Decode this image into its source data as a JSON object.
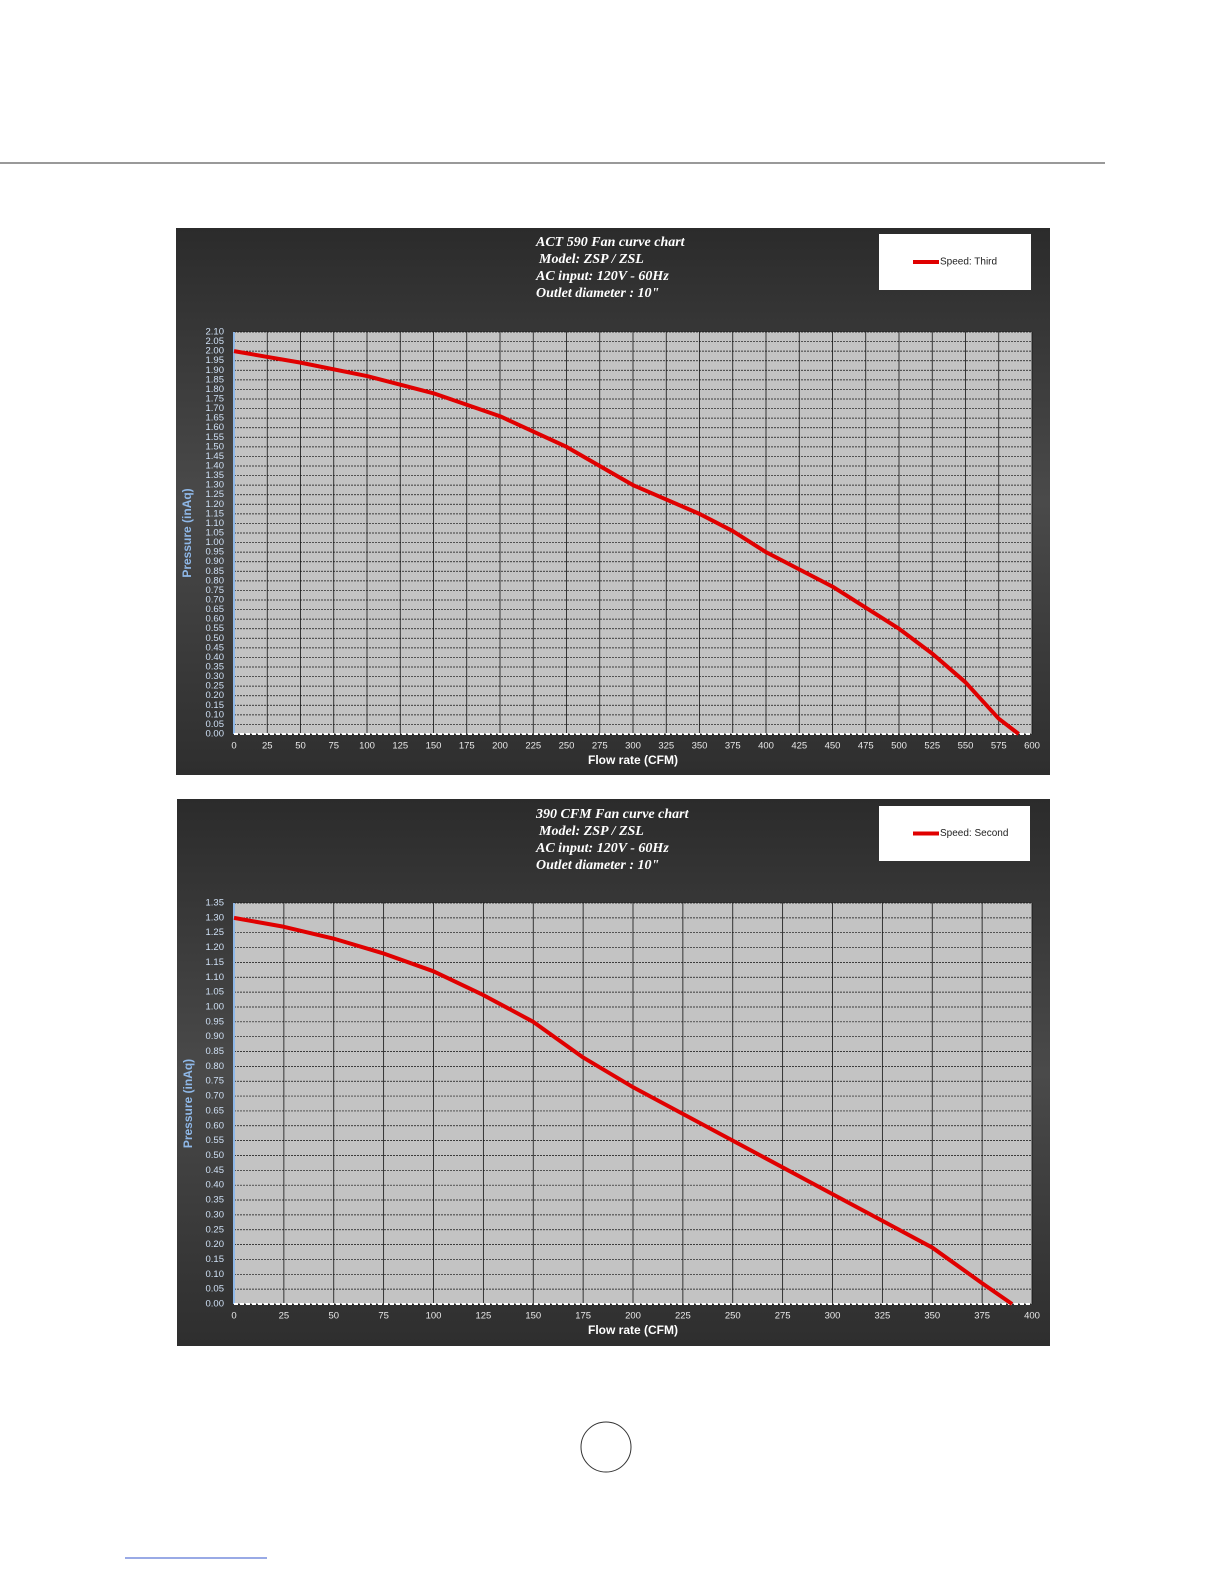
{
  "chart_data": [
    {
      "type": "line",
      "title": "ACT 590 Fan curve chart",
      "subtitle": [
        "Model: ZSP / ZSL",
        "AC input: 120V - 60Hz",
        "Outlet diameter : 10\""
      ],
      "x_label": "Flow rate (CFM)",
      "y_label": "Pressure (inAq)",
      "grid": true,
      "legend": "upper right",
      "x": [
        0,
        50,
        100,
        150,
        200,
        250,
        300,
        350,
        375,
        400,
        450,
        500,
        525,
        550,
        575,
        590
      ],
      "series": [
        {
          "name": "Speed: Third",
          "color": "#e00000",
          "values": [
            2.0,
            1.94,
            1.87,
            1.78,
            1.66,
            1.5,
            1.3,
            1.15,
            1.06,
            0.95,
            0.77,
            0.55,
            0.42,
            0.27,
            0.08,
            0.0
          ]
        }
      ],
      "xlim": [
        0,
        600
      ],
      "xticks": [
        0,
        25,
        50,
        75,
        100,
        125,
        150,
        175,
        200,
        225,
        250,
        275,
        300,
        325,
        350,
        375,
        400,
        425,
        450,
        475,
        500,
        525,
        550,
        575,
        600
      ],
      "ylim": [
        0,
        2.1
      ],
      "yticks": [
        {
          "value": 0,
          "label": "0.00"
        },
        {
          "value": 0.05,
          "label": "0.05"
        },
        {
          "value": 0.1,
          "label": "0.10"
        },
        {
          "value": 0.15,
          "label": "0.15"
        },
        {
          "value": 0.2,
          "label": "0.20"
        },
        {
          "value": 0.25,
          "label": "0.25"
        },
        {
          "value": 0.3,
          "label": "0.30"
        },
        {
          "value": 0.35,
          "label": "0.35"
        },
        {
          "value": 0.4,
          "label": "0.40"
        },
        {
          "value": 0.45,
          "label": "0.45"
        },
        {
          "value": 0.5,
          "label": "0.50"
        },
        {
          "value": 0.55,
          "label": "0.55"
        },
        {
          "value": 0.6,
          "label": "0.60"
        },
        {
          "value": 0.65,
          "label": "0.65"
        },
        {
          "value": 0.7,
          "label": "0.70"
        },
        {
          "value": 0.75,
          "label": "0.75"
        },
        {
          "value": 0.8,
          "label": "0.80"
        },
        {
          "value": 0.85,
          "label": "0.85"
        },
        {
          "value": 0.9,
          "label": "0.90"
        },
        {
          "value": 0.95,
          "label": "0.95"
        },
        {
          "value": 1,
          "label": "1.00"
        },
        {
          "value": 1.05,
          "label": "1.05"
        },
        {
          "value": 1.1,
          "label": "1.10"
        },
        {
          "value": 1.15,
          "label": "1.15"
        },
        {
          "value": 1.2,
          "label": "1.20"
        },
        {
          "value": 1.25,
          "label": "1.25"
        },
        {
          "value": 1.3,
          "label": "1.30"
        },
        {
          "value": 1.35,
          "label": "1.35"
        },
        {
          "value": 1.4,
          "label": "1.40"
        },
        {
          "value": 1.45,
          "label": "1.45"
        },
        {
          "value": 1.5,
          "label": "1.50"
        },
        {
          "value": 1.55,
          "label": "1.55"
        },
        {
          "value": 1.6,
          "label": "1.60"
        },
        {
          "value": 1.65,
          "label": "1.65"
        },
        {
          "value": 1.7,
          "label": "1.70"
        },
        {
          "value": 1.75,
          "label": "1.75"
        },
        {
          "value": 1.8,
          "label": "1.80"
        },
        {
          "value": 1.85,
          "label": "1.85"
        },
        {
          "value": 1.9,
          "label": "1.90"
        },
        {
          "value": 1.95,
          "label": "1.95"
        },
        {
          "value": 2,
          "label": "2.00"
        },
        {
          "value": 2.05,
          "label": "2.05"
        },
        {
          "value": 2.1,
          "label": "2.10"
        }
      ]
    },
    {
      "type": "line",
      "title": "390 CFM Fan curve chart",
      "subtitle": [
        "Model: ZSP / ZSL",
        "AC input: 120V - 60Hz",
        "Outlet diameter : 10\""
      ],
      "x_label": "Flow rate (CFM)",
      "y_label": "Pressure (inAq)",
      "grid": true,
      "legend": "upper right",
      "x": [
        0,
        25,
        50,
        75,
        100,
        125,
        150,
        175,
        200,
        250,
        300,
        350,
        375,
        390
      ],
      "series": [
        {
          "name": "Speed: Second",
          "color": "#e00000",
          "values": [
            1.3,
            1.27,
            1.23,
            1.18,
            1.12,
            1.04,
            0.95,
            0.83,
            0.73,
            0.55,
            0.37,
            0.19,
            0.07,
            0.0
          ]
        }
      ],
      "xlim": [
        0,
        400
      ],
      "xticks": [
        0,
        25,
        50,
        75,
        100,
        125,
        150,
        175,
        200,
        225,
        250,
        275,
        300,
        325,
        350,
        375,
        400
      ],
      "ylim": [
        0,
        1.35
      ],
      "yticks": [
        {
          "value": 0,
          "label": "0.00"
        },
        {
          "value": 0.05,
          "label": "0.05"
        },
        {
          "value": 0.1,
          "label": "0.10"
        },
        {
          "value": 0.15,
          "label": "0.15"
        },
        {
          "value": 0.2,
          "label": "0.20"
        },
        {
          "value": 0.25,
          "label": "0.25"
        },
        {
          "value": 0.3,
          "label": "0.30"
        },
        {
          "value": 0.35,
          "label": "0.35"
        },
        {
          "value": 0.4,
          "label": "0.40"
        },
        {
          "value": 0.45,
          "label": "0.45"
        },
        {
          "value": 0.5,
          "label": "0.50"
        },
        {
          "value": 0.55,
          "label": "0.55"
        },
        {
          "value": 0.6,
          "label": "0.60"
        },
        {
          "value": 0.65,
          "label": "0.65"
        },
        {
          "value": 0.7,
          "label": "0.70"
        },
        {
          "value": 0.75,
          "label": "0.75"
        },
        {
          "value": 0.8,
          "label": "0.80"
        },
        {
          "value": 0.85,
          "label": "0.85"
        },
        {
          "value": 0.9,
          "label": "0.90"
        },
        {
          "value": 0.95,
          "label": "0.95"
        },
        {
          "value": 1,
          "label": "1.00"
        },
        {
          "value": 1.05,
          "label": "1.05"
        },
        {
          "value": 1.1,
          "label": "1.10"
        },
        {
          "value": 1.15,
          "label": "1.15"
        },
        {
          "value": 1.2,
          "label": "1.20"
        },
        {
          "value": 1.25,
          "label": "1.25"
        },
        {
          "value": 1.3,
          "label": "1.30"
        },
        {
          "value": 1.35,
          "label": "1.35"
        }
      ]
    }
  ]
}
